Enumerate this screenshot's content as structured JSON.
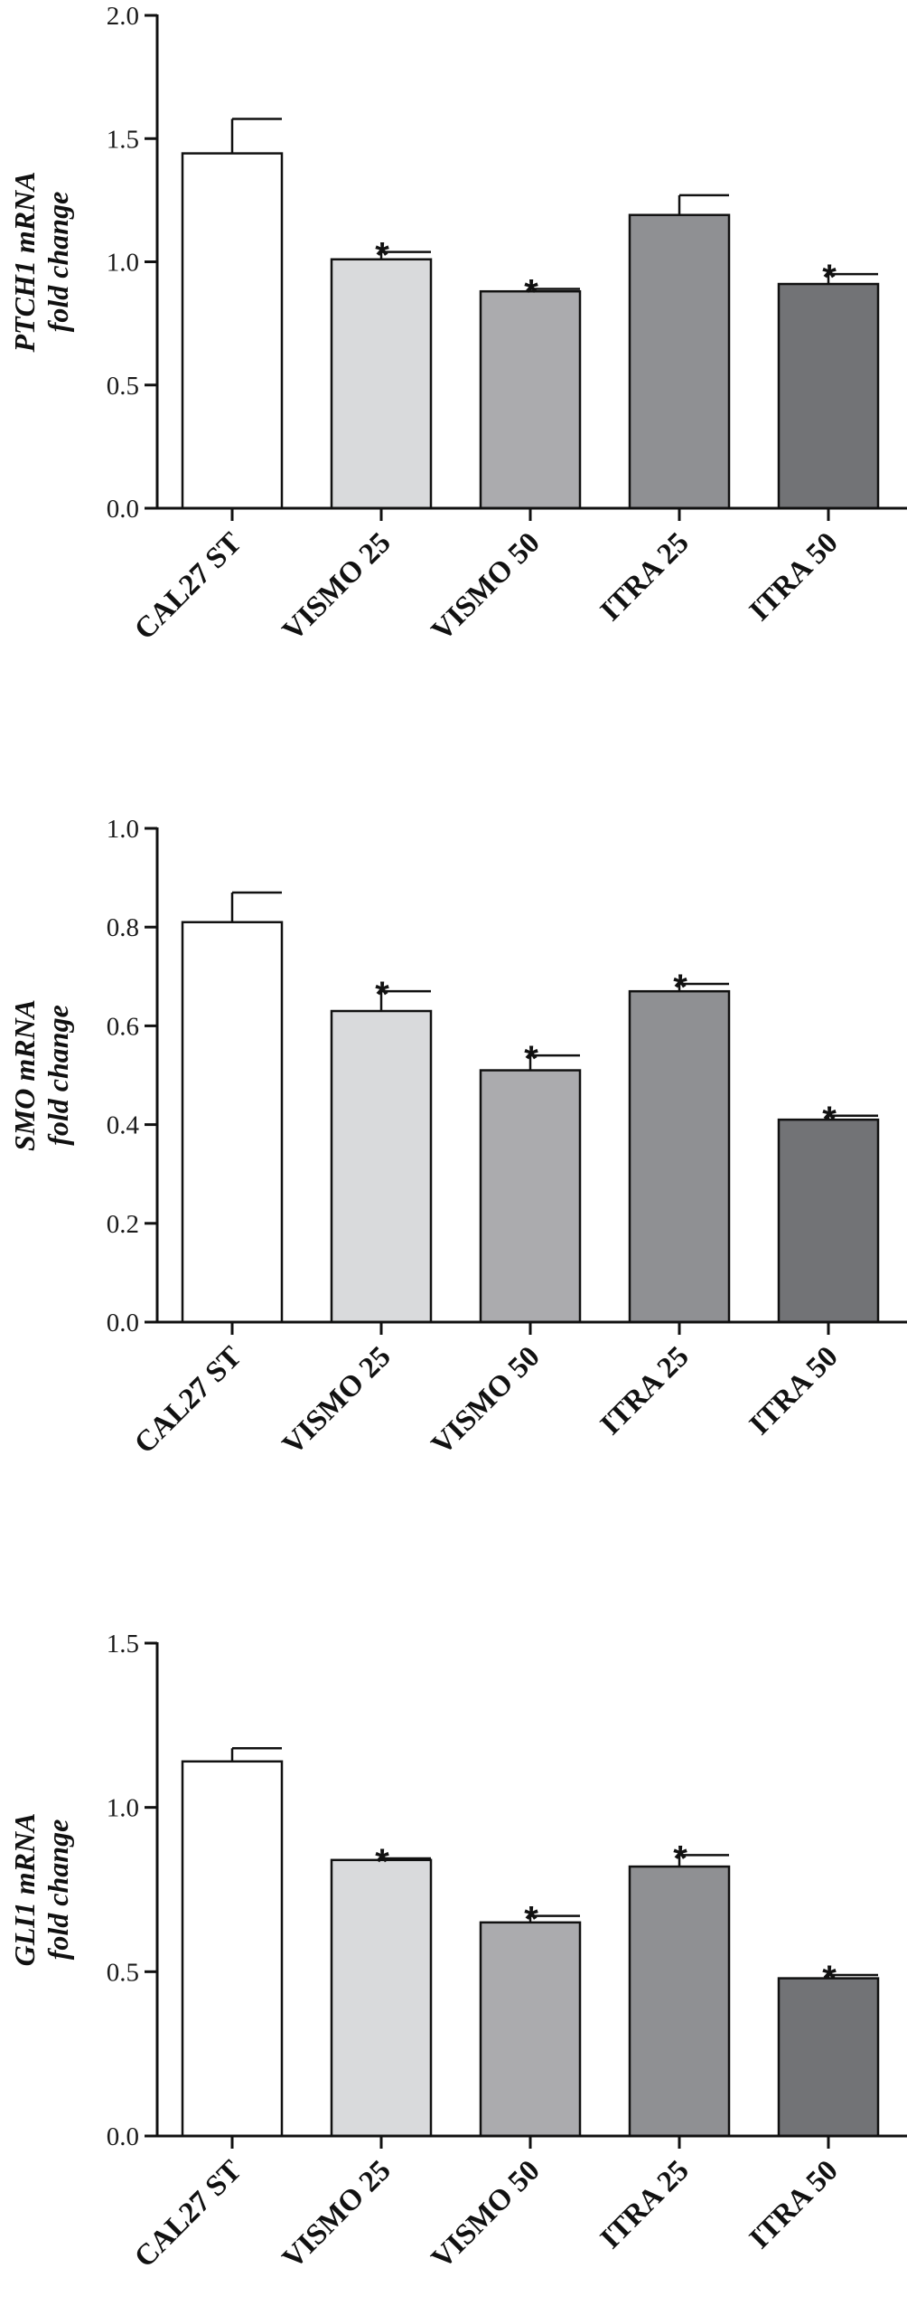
{
  "chart_data": [
    {
      "type": "bar",
      "ylabel_lines": [
        "PTCH1 mRNA",
        "fold change"
      ],
      "categories": [
        "CAL27 ST",
        "VISMO 25",
        "VISMO 50",
        "ITRA 25",
        "ITRA 50"
      ],
      "values": [
        1.44,
        1.01,
        0.88,
        1.19,
        0.91
      ],
      "errors": [
        0.14,
        0.03,
        0.01,
        0.08,
        0.04
      ],
      "significance": [
        "",
        "*",
        "*",
        "",
        "*"
      ],
      "ylim": [
        0,
        2.0
      ],
      "yticks": [
        "0.0",
        "0.5",
        "1.0",
        "1.5",
        "2.0"
      ],
      "bar_colors": [
        "#ffffff",
        "#d9dadc",
        "#ababae",
        "#8f9093",
        "#727376"
      ],
      "grid": false,
      "legend": "none"
    },
    {
      "type": "bar",
      "ylabel_lines": [
        "SMO mRNA",
        "fold change"
      ],
      "categories": [
        "CAL27 ST",
        "VISMO 25",
        "VISMO 50",
        "ITRA 25",
        "ITRA 50"
      ],
      "values": [
        0.81,
        0.63,
        0.51,
        0.67,
        0.41
      ],
      "errors": [
        0.06,
        0.04,
        0.03,
        0.015,
        0.008
      ],
      "significance": [
        "",
        "*",
        "*",
        "*",
        "*"
      ],
      "ylim": [
        0,
        1.0
      ],
      "yticks": [
        "0.0",
        "0.2",
        "0.4",
        "0.6",
        "0.8",
        "1.0"
      ],
      "bar_colors": [
        "#ffffff",
        "#d9dadc",
        "#ababae",
        "#8f9093",
        "#727376"
      ],
      "grid": false,
      "legend": "none"
    },
    {
      "type": "bar",
      "ylabel_lines": [
        "GLI1 mRNA",
        "fold change"
      ],
      "categories": [
        "CAL27 ST",
        "VISMO 25",
        "VISMO 50",
        "ITRA 25",
        "ITRA 50"
      ],
      "values": [
        1.14,
        0.84,
        0.65,
        0.82,
        0.48
      ],
      "errors": [
        0.04,
        0.005,
        0.02,
        0.035,
        0.01
      ],
      "significance": [
        "",
        "*",
        "*",
        "*",
        "*"
      ],
      "ylim": [
        0,
        1.5
      ],
      "yticks": [
        "0.0",
        "0.5",
        "1.0",
        "1.5"
      ],
      "bar_colors": [
        "#ffffff",
        "#d9dadc",
        "#ababae",
        "#8f9093",
        "#727376"
      ],
      "grid": false,
      "legend": "none"
    }
  ]
}
